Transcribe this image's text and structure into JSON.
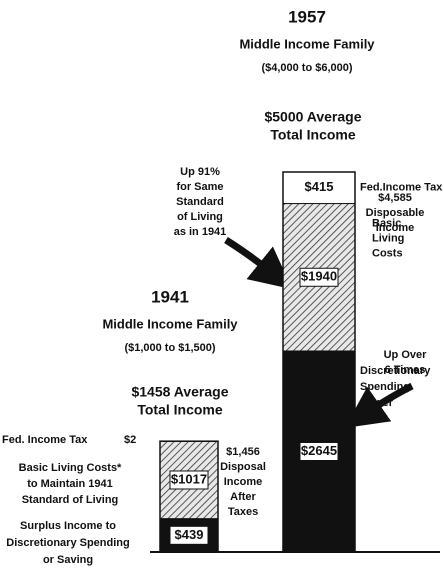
{
  "chart_data": {
    "type": "stacked_bar",
    "groups": [
      {
        "heading": "1957",
        "subheading": "Middle Income Family",
        "range": "($4,000 to $6,000)",
        "total": 5000,
        "total_label": [
          "$5000 Average",
          "Total Income"
        ],
        "segments": [
          {
            "name": [
              "Fed.Income Tax"
            ],
            "value": 415,
            "value_label": "$415",
            "color": "#ffffff",
            "hatched": false
          },
          {
            "name": [
              "Basic",
              "Living",
              "Costs"
            ],
            "value": 1940,
            "value_label": "$1940",
            "color": "#ffffff",
            "hatched": true
          },
          {
            "name": [
              "Discretionary",
              "Spending",
              "Power"
            ],
            "value": 2645,
            "value_label": "$2645",
            "color": "#111111",
            "hatched": false
          }
        ]
      },
      {
        "heading": "1941",
        "subheading": "Middle Income Family",
        "range": "($1,000 to $1,500)",
        "total": 1458,
        "total_label": [
          "$1458 Average",
          "Total Income"
        ],
        "segments": [
          {
            "name": [
              "Fed. Income Tax"
            ],
            "value": 2,
            "value_label": "$2",
            "color": "#ffffff",
            "hatched": false
          },
          {
            "name": [
              "Basic Living Costs*",
              "to Maintain 1941",
              "Standard of Living"
            ],
            "value": 1017,
            "value_label": "$1017",
            "color": "#ffffff",
            "hatched": true
          },
          {
            "name": [
              "Surplus Income to",
              "Discretionary Spending",
              "or Saving"
            ],
            "value": 439,
            "value_label": "$439",
            "color": "#111111",
            "hatched": false
          }
        ]
      }
    ],
    "annotations": [
      {
        "lines": [
          "$4,585",
          "Disposable",
          "Income"
        ]
      },
      {
        "lines": [
          "Up 91%",
          "for Same",
          "Standard",
          "of Living",
          "as in 1941"
        ]
      },
      {
        "lines": [
          "Up Over",
          "6 Times"
        ]
      },
      {
        "lines": [
          "$1,456",
          "Disposal",
          "Income",
          "After",
          "Taxes"
        ]
      }
    ]
  }
}
